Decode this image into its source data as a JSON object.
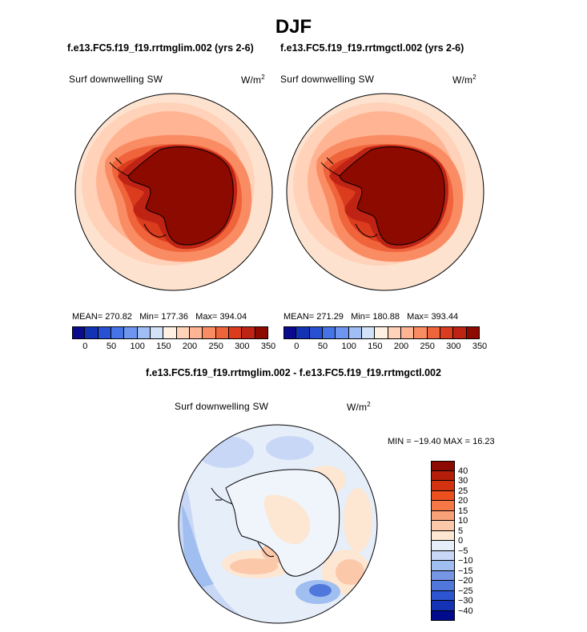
{
  "season": "DJF",
  "panels": [
    {
      "case": "f.e13.FC5.f19_f19.rrtmglim.002 (yrs 2-6)",
      "variable": "Surf downwelling SW",
      "units": "W/m",
      "units_sup": "2",
      "stats": {
        "mean_label": "MEAN=",
        "mean": "270.82",
        "min_label": "Min=",
        "min": "177.36",
        "max_label": "Max=",
        "max": "394.04"
      }
    },
    {
      "case": "f.e13.FC5.f19_f19.rrtmgctl.002 (yrs 2-6)",
      "variable": "Surf downwelling SW",
      "units": "W/m",
      "units_sup": "2",
      "stats": {
        "mean_label": "MEAN=",
        "mean": "271.29",
        "min_label": "Min=",
        "min": "180.88",
        "max_label": "Max=",
        "max": "393.44"
      }
    }
  ],
  "abs_colorbar": {
    "colors": [
      "#0a0a8c",
      "#1432b4",
      "#2850d2",
      "#4673e6",
      "#6e96f0",
      "#a0bef5",
      "#d2e2f8",
      "#fff0e4",
      "#ffd2b9",
      "#ffb493",
      "#fa8c64",
      "#f0643c",
      "#dc3c1e",
      "#be2314",
      "#8c0a00"
    ],
    "labels": [
      "0",
      "50",
      "100",
      "150",
      "200",
      "250",
      "300",
      "350"
    ]
  },
  "diff": {
    "title": "f.e13.FC5.f19_f19.rrtmglim.002 - f.e13.FC5.f19_f19.rrtmgctl.002",
    "variable": "Surf downwelling SW",
    "units": "W/m",
    "units_sup": "2",
    "minmax": "MIN = −19.40 MAX =  16.23"
  },
  "diff_colorbar": {
    "colors": [
      "#8c0a00",
      "#b41e0a",
      "#d2320f",
      "#eb501e",
      "#f57846",
      "#f8a078",
      "#fbc8aa",
      "#fde6d2",
      "#e6eefa",
      "#c8d7f5",
      "#a0bef0",
      "#7896e6",
      "#5078dc",
      "#2d55d2",
      "#1432b4",
      "#000a8c"
    ],
    "labels": [
      "40",
      "30",
      "25",
      "20",
      "15",
      "10",
      "5",
      "0",
      "−5",
      "−10",
      "−15",
      "−20",
      "−25",
      "−30",
      "−40"
    ]
  },
  "colors": {
    "antarctica_fill": "#8c0a00",
    "ocean_light": "#fde6d2",
    "diff_ocean": "#e8eef9"
  }
}
